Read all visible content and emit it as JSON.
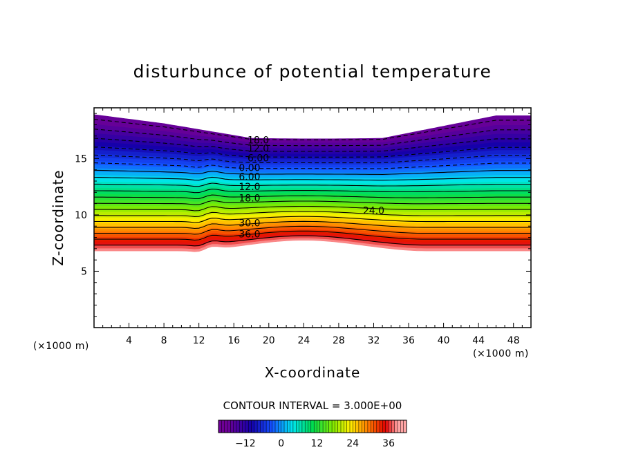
{
  "chart_data": {
    "type": "contour",
    "title": "disturbunce of potential temperature",
    "xlabel": "X-coordinate",
    "ylabel": "Z-coordinate",
    "x_unit": "(×1000 m)",
    "y_unit": "(×1000 m)",
    "xlim": [
      0,
      50
    ],
    "ylim": [
      0,
      19.5
    ],
    "x_ticks": [
      4,
      8,
      12,
      16,
      20,
      24,
      28,
      32,
      36,
      40,
      44,
      48
    ],
    "y_ticks": [
      5,
      10,
      15
    ],
    "contour_interval_text": "CONTOUR INTERVAL = 3.000E+00",
    "contour_interval": 3,
    "value_range": [
      -18,
      39
    ],
    "negative_contours_dashed": true,
    "contour_labels": [
      {
        "text": "18.0",
        "x": 18.8,
        "y": 16.65
      },
      {
        "text": "12.0",
        "x": 18.8,
        "y": 15.9
      },
      {
        "text": "6.00",
        "x": 18.8,
        "y": 15.05
      },
      {
        "text": "0.00",
        "x": 17.8,
        "y": 14.2
      },
      {
        "text": "6.00",
        "x": 17.8,
        "y": 13.4
      },
      {
        "text": "12.0",
        "x": 17.8,
        "y": 12.5
      },
      {
        "text": "18.0",
        "x": 17.8,
        "y": 11.5
      },
      {
        "text": "24.0",
        "x": 32.0,
        "y": 10.4
      },
      {
        "text": "30.0",
        "x": 17.8,
        "y": 9.3
      },
      {
        "text": "36.0",
        "x": 17.8,
        "y": 8.3
      }
    ],
    "colorbar": {
      "tick_labels": [
        "-12",
        "0",
        "12",
        "24",
        "36"
      ],
      "tick_values": [
        -12,
        0,
        12,
        24,
        36
      ],
      "range": [
        -21,
        42
      ]
    }
  }
}
